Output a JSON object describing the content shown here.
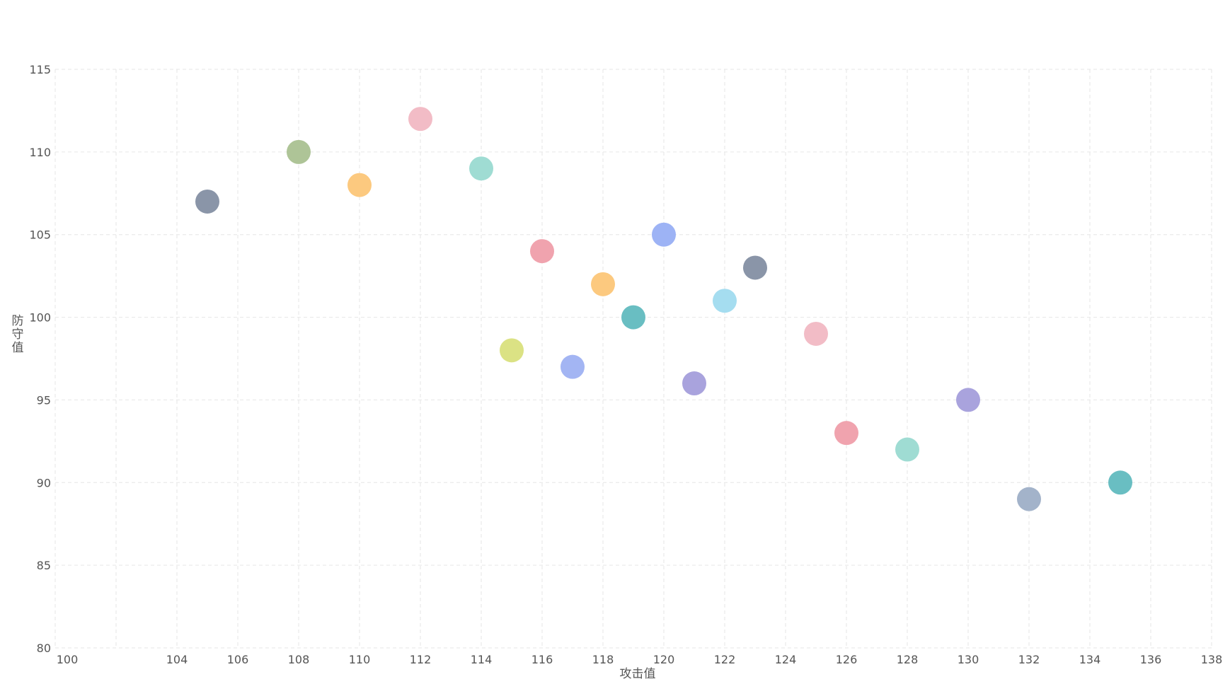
{
  "chart_data": {
    "type": "scatter",
    "xlabel": "攻击值",
    "ylabel": "防守值",
    "xlim": [
      100,
      138
    ],
    "ylim": [
      80,
      115
    ],
    "x_ticks": [
      100,
      104,
      106,
      108,
      110,
      112,
      114,
      116,
      118,
      120,
      122,
      124,
      126,
      128,
      130,
      132,
      134,
      136,
      138
    ],
    "x_grid": [
      100,
      102,
      104,
      106,
      108,
      110,
      112,
      114,
      116,
      118,
      120,
      122,
      124,
      126,
      128,
      130,
      132,
      134,
      136,
      138
    ],
    "y_ticks": [
      80,
      85,
      90,
      95,
      100,
      105,
      110,
      115
    ],
    "grid": true,
    "points": [
      {
        "x": 105,
        "y": 107,
        "color": "#8a95a8"
      },
      {
        "x": 108,
        "y": 110,
        "color": "#aec497"
      },
      {
        "x": 110,
        "y": 108,
        "color": "#fcc97f"
      },
      {
        "x": 112,
        "y": 112,
        "color": "#f2bcc6"
      },
      {
        "x": 114,
        "y": 109,
        "color": "#9fdcd3"
      },
      {
        "x": 115,
        "y": 98,
        "color": "#dbe284"
      },
      {
        "x": 116,
        "y": 104,
        "color": "#f0a3ae"
      },
      {
        "x": 117,
        "y": 97,
        "color": "#a3b5f3"
      },
      {
        "x": 118,
        "y": 102,
        "color": "#fcc97f"
      },
      {
        "x": 119,
        "y": 100,
        "color": "#69bec2"
      },
      {
        "x": 120,
        "y": 105,
        "color": "#9db3f5"
      },
      {
        "x": 121,
        "y": 96,
        "color": "#a9a3dd"
      },
      {
        "x": 122,
        "y": 101,
        "color": "#a5ddf0"
      },
      {
        "x": 123,
        "y": 103,
        "color": "#8a95a8"
      },
      {
        "x": 125,
        "y": 99,
        "color": "#f2bcc6"
      },
      {
        "x": 126,
        "y": 93,
        "color": "#f0a3ae"
      },
      {
        "x": 128,
        "y": 92,
        "color": "#9fdcd3"
      },
      {
        "x": 130,
        "y": 95,
        "color": "#a9a3dd"
      },
      {
        "x": 132,
        "y": 89,
        "color": "#a3b3ca"
      },
      {
        "x": 135,
        "y": 90,
        "color": "#69bec2"
      }
    ]
  }
}
